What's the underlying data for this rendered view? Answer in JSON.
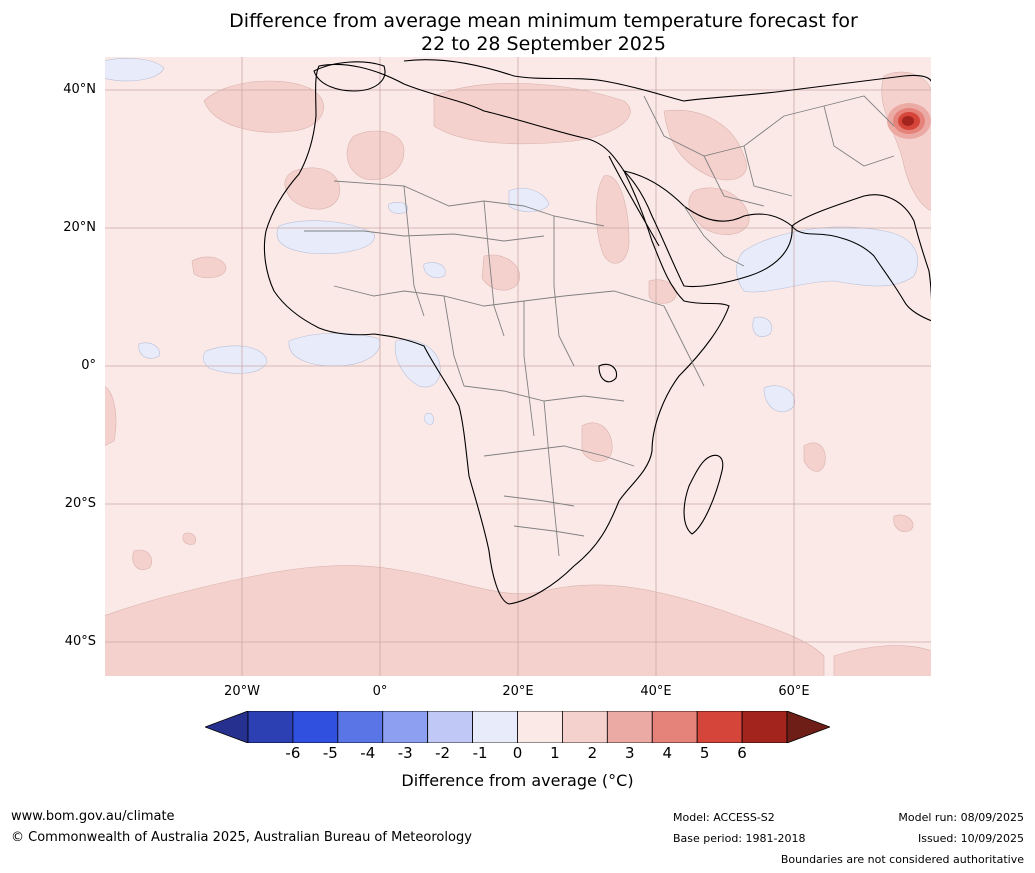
{
  "title": {
    "line1": "Difference from average mean minimum temperature forecast for",
    "line2": "22 to 28 September 2025"
  },
  "map": {
    "lat_labels": [
      "40°N",
      "20°N",
      "0°",
      "20°S",
      "40°S"
    ],
    "lon_labels": [
      "20°W",
      "0°",
      "20°E",
      "40°E",
      "60°E"
    ],
    "colors": {
      "ocean_base": "#fbe9e7",
      "warm_1_2": "#f5d1cd",
      "cool_0_1": "#e8ecfa",
      "hot_core": "#a3231d",
      "hot_ring": "#d6453a",
      "coast": "#000000",
      "border": "#808080",
      "grid": "#c9a9a6"
    }
  },
  "colorbar": {
    "ticks": [
      "-6",
      "-5",
      "-4",
      "-3",
      "-2",
      "-1",
      "0",
      "1",
      "2",
      "3",
      "4",
      "5",
      "6"
    ],
    "colors": [
      "#26318f",
      "#2c3fb3",
      "#3051e0",
      "#5a75e6",
      "#8c9ff0",
      "#c0c8f5",
      "#e8ecfa",
      "#fbe9e7",
      "#f5d1cd",
      "#ecaaa5",
      "#e5837b",
      "#d6453a",
      "#a3231d",
      "#6e1e16"
    ],
    "label": "Difference from average (°C)"
  },
  "footer": {
    "website": "www.bom.gov.au/climate",
    "copyright": "© Commonwealth of Australia 2025, Australian Bureau of Meteorology",
    "model": "Model: ACCESS-S2",
    "base_period": "Base period: 1981-2018",
    "model_run": "Model run: 08/09/2025",
    "issued": "Issued: 10/09/2025",
    "disclaimer": "Boundaries are not considered authoritative"
  }
}
